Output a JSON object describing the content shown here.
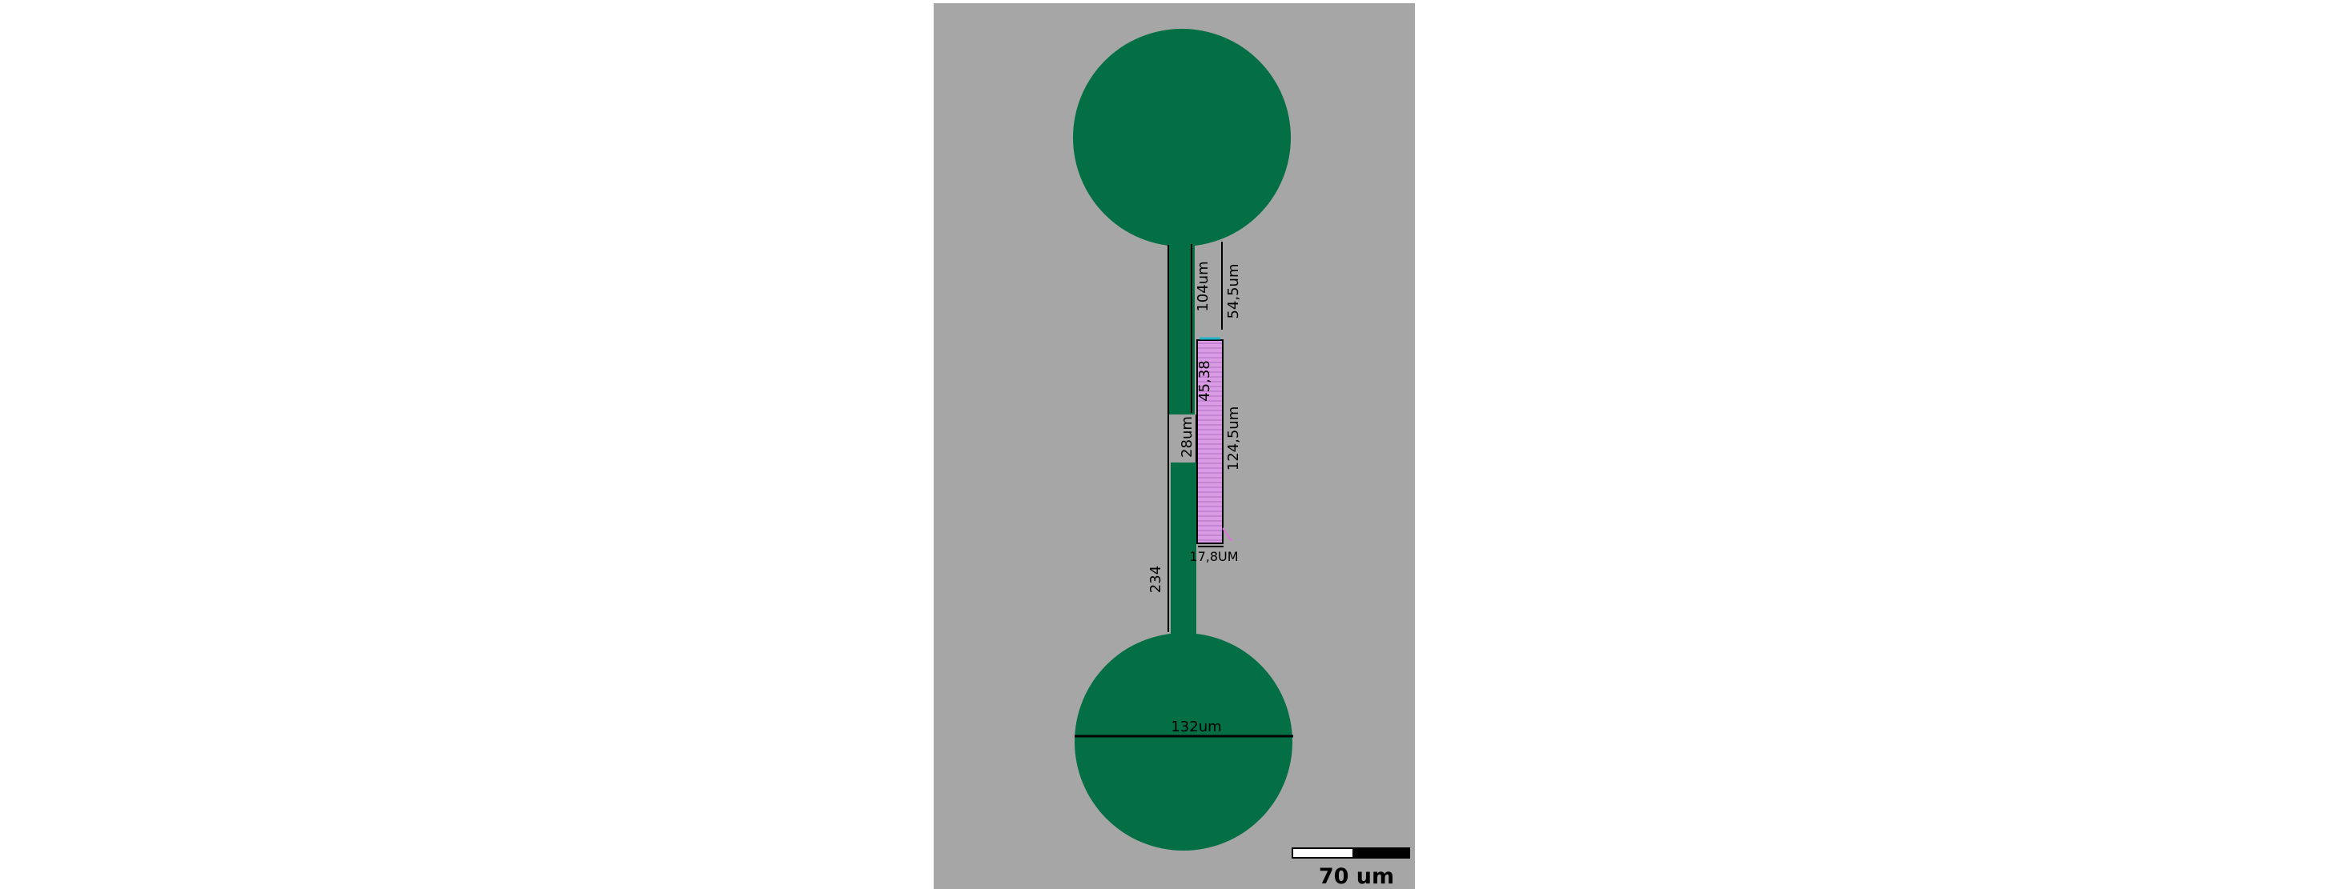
{
  "colors": {
    "background": "#ffffff",
    "panel": "#a6a6a6",
    "feature": "#046f44",
    "cell": "#d99be3",
    "line": "#000000",
    "marker": "#1fb3c9"
  },
  "labels": {
    "top_neck_length": "104um",
    "top_gap": "54,5um",
    "cell_offset": "45,38",
    "gap_height": "28um",
    "cell_length": "124,5um",
    "cell_width": "17,8UM",
    "channel_length": "234",
    "pad_diameter": "132um"
  },
  "scale_bar": {
    "label": "70 um"
  }
}
